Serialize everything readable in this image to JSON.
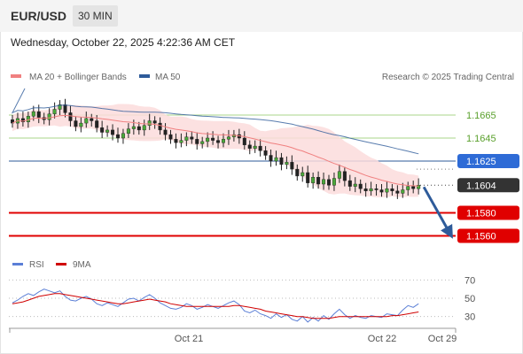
{
  "header": {
    "pair": "EUR/USD",
    "timeframe": "30 MIN"
  },
  "timestamp": "Wednesday, October 22, 2025 4:22:36 AM CET",
  "legend": {
    "ma20_label": "MA 20 + Bollinger Bands",
    "ma20_color": "#f08080",
    "ma50_label": "MA 50",
    "ma50_color": "#2e5b9a",
    "credit": "Research © 2025 Trading Central"
  },
  "rsi_legend": {
    "rsi_label": "RSI",
    "rsi_color": "#5b7fd6",
    "ma_label": "9MA",
    "ma_color": "#d00000"
  },
  "chart_data": {
    "type": "candlestick",
    "y_range": [
      1.1545,
      1.1685
    ],
    "current_price": {
      "value": 1.1604,
      "label": "1.1604"
    },
    "levels": [
      {
        "value": 1.1665,
        "label": "1.1665",
        "kind": "resistance"
      },
      {
        "value": 1.1645,
        "label": "1.1645",
        "kind": "resistance"
      },
      {
        "value": 1.1625,
        "label": "1.1625",
        "kind": "pivot"
      },
      {
        "value": 1.158,
        "label": "1.1580",
        "kind": "support"
      },
      {
        "value": 1.156,
        "label": "1.1560",
        "kind": "support"
      }
    ],
    "forecast": {
      "from": 1.1604,
      "to": 1.156,
      "direction": "down"
    },
    "close_series": [
      1.1658,
      1.1662,
      1.1659,
      1.1664,
      1.1668,
      1.1663,
      1.1661,
      1.1666,
      1.167,
      1.1674,
      1.1667,
      1.166,
      1.1655,
      1.1658,
      1.1662,
      1.166,
      1.1654,
      1.165,
      1.1652,
      1.1648,
      1.1645,
      1.1649,
      1.1653,
      1.1655,
      1.1652,
      1.1656,
      1.166,
      1.1658,
      1.1652,
      1.1648,
      1.1644,
      1.1641,
      1.1643,
      1.1646,
      1.1644,
      1.164,
      1.1642,
      1.1645,
      1.1643,
      1.1641,
      1.1644,
      1.1646,
      1.1648,
      1.1645,
      1.1639,
      1.1636,
      1.1638,
      1.1634,
      1.163,
      1.1625,
      1.1628,
      1.1622,
      1.1624,
      1.1618,
      1.1612,
      1.1615,
      1.1606,
      1.1611,
      1.1605,
      1.1609,
      1.1604,
      1.161,
      1.1616,
      1.1608,
      1.1603,
      1.1605,
      1.1601,
      1.1599,
      1.1601,
      1.16,
      1.1598,
      1.1601,
      1.1599,
      1.1597,
      1.16,
      1.1603,
      1.1601,
      1.1604
    ],
    "x_labels": [
      "Oct 21",
      "Oct 22",
      "Oct 29"
    ],
    "rsi_axis": {
      "range": [
        20,
        80
      ],
      "ticks": [
        70,
        50,
        30
      ]
    },
    "rsi_series": [
      45,
      48,
      52,
      55,
      53,
      57,
      60,
      58,
      56,
      58,
      52,
      48,
      47,
      50,
      52,
      49,
      44,
      42,
      45,
      43,
      41,
      45,
      49,
      50,
      47,
      51,
      54,
      50,
      45,
      42,
      39,
      38,
      40,
      44,
      42,
      38,
      40,
      43,
      41,
      39,
      42,
      45,
      47,
      43,
      36,
      34,
      37,
      33,
      31,
      28,
      33,
      29,
      32,
      27,
      25,
      30,
      24,
      29,
      25,
      31,
      27,
      33,
      38,
      32,
      28,
      31,
      29,
      28,
      31,
      30,
      29,
      33,
      32,
      31,
      37,
      42,
      40,
      44
    ],
    "rsi_ma_series": [
      44,
      45,
      46,
      48,
      50,
      52,
      53,
      54,
      55,
      55,
      54,
      53,
      52,
      51,
      50,
      49,
      48,
      47,
      46,
      45,
      44,
      44,
      45,
      46,
      47,
      48,
      49,
      48,
      47,
      46,
      44,
      43,
      42,
      41,
      41,
      41,
      41,
      41,
      41,
      41,
      41,
      41,
      42,
      42,
      41,
      40,
      39,
      38,
      36,
      35,
      34,
      33,
      32,
      31,
      30,
      30,
      29,
      28,
      28,
      28,
      28,
      29,
      30,
      30,
      30,
      30,
      30,
      30,
      30,
      30,
      30,
      30,
      31,
      31,
      32,
      33,
      34,
      35
    ]
  }
}
